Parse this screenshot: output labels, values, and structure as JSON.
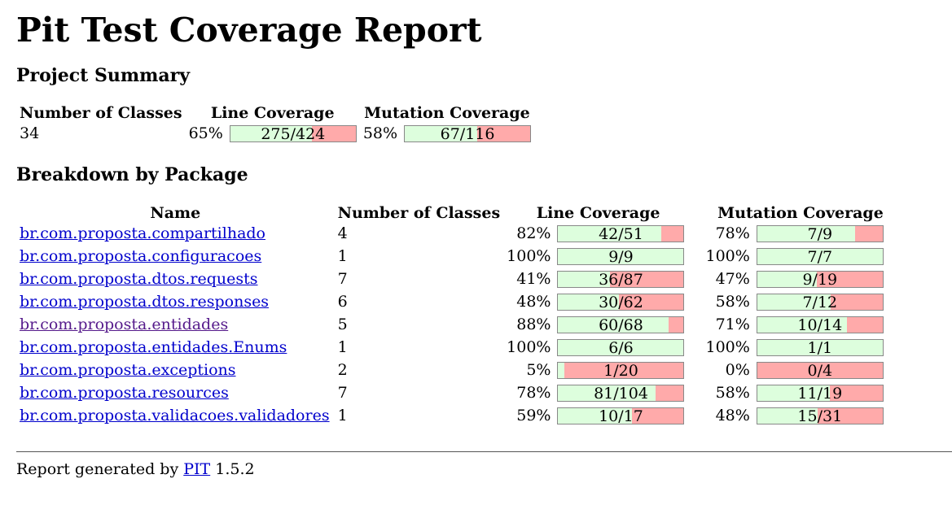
{
  "title": "Pit Test Coverage Report",
  "project_summary": {
    "heading": "Project Summary",
    "headers": [
      "Number of Classes",
      "Line Coverage",
      "Mutation Coverage"
    ],
    "classes": "34",
    "line_pct": "65%",
    "line_label": "275/424",
    "line_fraction": 0.6486,
    "mut_pct": "58%",
    "mut_label": "67/116",
    "mut_fraction": 0.5776
  },
  "breakdown": {
    "heading": "Breakdown by Package",
    "headers": [
      "Name",
      "Number of Classes",
      "Line Coverage",
      "Mutation Coverage"
    ],
    "rows": [
      {
        "name": "br.com.proposta.compartilhado",
        "classes": "4",
        "line_pct": "82%",
        "line_label": "42/51",
        "line_fraction": 0.8235,
        "mut_pct": "78%",
        "mut_label": "7/9",
        "mut_fraction": 0.7778,
        "visited": false
      },
      {
        "name": "br.com.proposta.configuracoes",
        "classes": "1",
        "line_pct": "100%",
        "line_label": "9/9",
        "line_fraction": 1.0,
        "mut_pct": "100%",
        "mut_label": "7/7",
        "mut_fraction": 1.0,
        "visited": false
      },
      {
        "name": "br.com.proposta.dtos.requests",
        "classes": "7",
        "line_pct": "41%",
        "line_label": "36/87",
        "line_fraction": 0.4138,
        "mut_pct": "47%",
        "mut_label": "9/19",
        "mut_fraction": 0.4737,
        "visited": false
      },
      {
        "name": "br.com.proposta.dtos.responses",
        "classes": "6",
        "line_pct": "48%",
        "line_label": "30/62",
        "line_fraction": 0.4839,
        "mut_pct": "58%",
        "mut_label": "7/12",
        "mut_fraction": 0.5833,
        "visited": false
      },
      {
        "name": "br.com.proposta.entidades",
        "classes": "5",
        "line_pct": "88%",
        "line_label": "60/68",
        "line_fraction": 0.8824,
        "mut_pct": "71%",
        "mut_label": "10/14",
        "mut_fraction": 0.7143,
        "visited": true
      },
      {
        "name": "br.com.proposta.entidades.Enums",
        "classes": "1",
        "line_pct": "100%",
        "line_label": "6/6",
        "line_fraction": 1.0,
        "mut_pct": "100%",
        "mut_label": "1/1",
        "mut_fraction": 1.0,
        "visited": false
      },
      {
        "name": "br.com.proposta.exceptions",
        "classes": "2",
        "line_pct": "5%",
        "line_label": "1/20",
        "line_fraction": 0.05,
        "mut_pct": "0%",
        "mut_label": "0/4",
        "mut_fraction": 0.0,
        "visited": false
      },
      {
        "name": "br.com.proposta.resources",
        "classes": "7",
        "line_pct": "78%",
        "line_label": "81/104",
        "line_fraction": 0.7788,
        "mut_pct": "58%",
        "mut_label": "11/19",
        "mut_fraction": 0.5789,
        "visited": false
      },
      {
        "name": "br.com.proposta.validacoes.validadores",
        "classes": "1",
        "line_pct": "59%",
        "line_label": "10/17",
        "line_fraction": 0.5882,
        "mut_pct": "48%",
        "mut_label": "15/31",
        "mut_fraction": 0.4839,
        "visited": false
      }
    ]
  },
  "footer": {
    "prefix": "Report generated by",
    "link": "PIT",
    "version": "1.5.2"
  },
  "colors": {
    "covered": "#ddfedd",
    "uncovered": "#ffaaaa",
    "link": "#0000cc",
    "visited_link": "#551a8b"
  }
}
